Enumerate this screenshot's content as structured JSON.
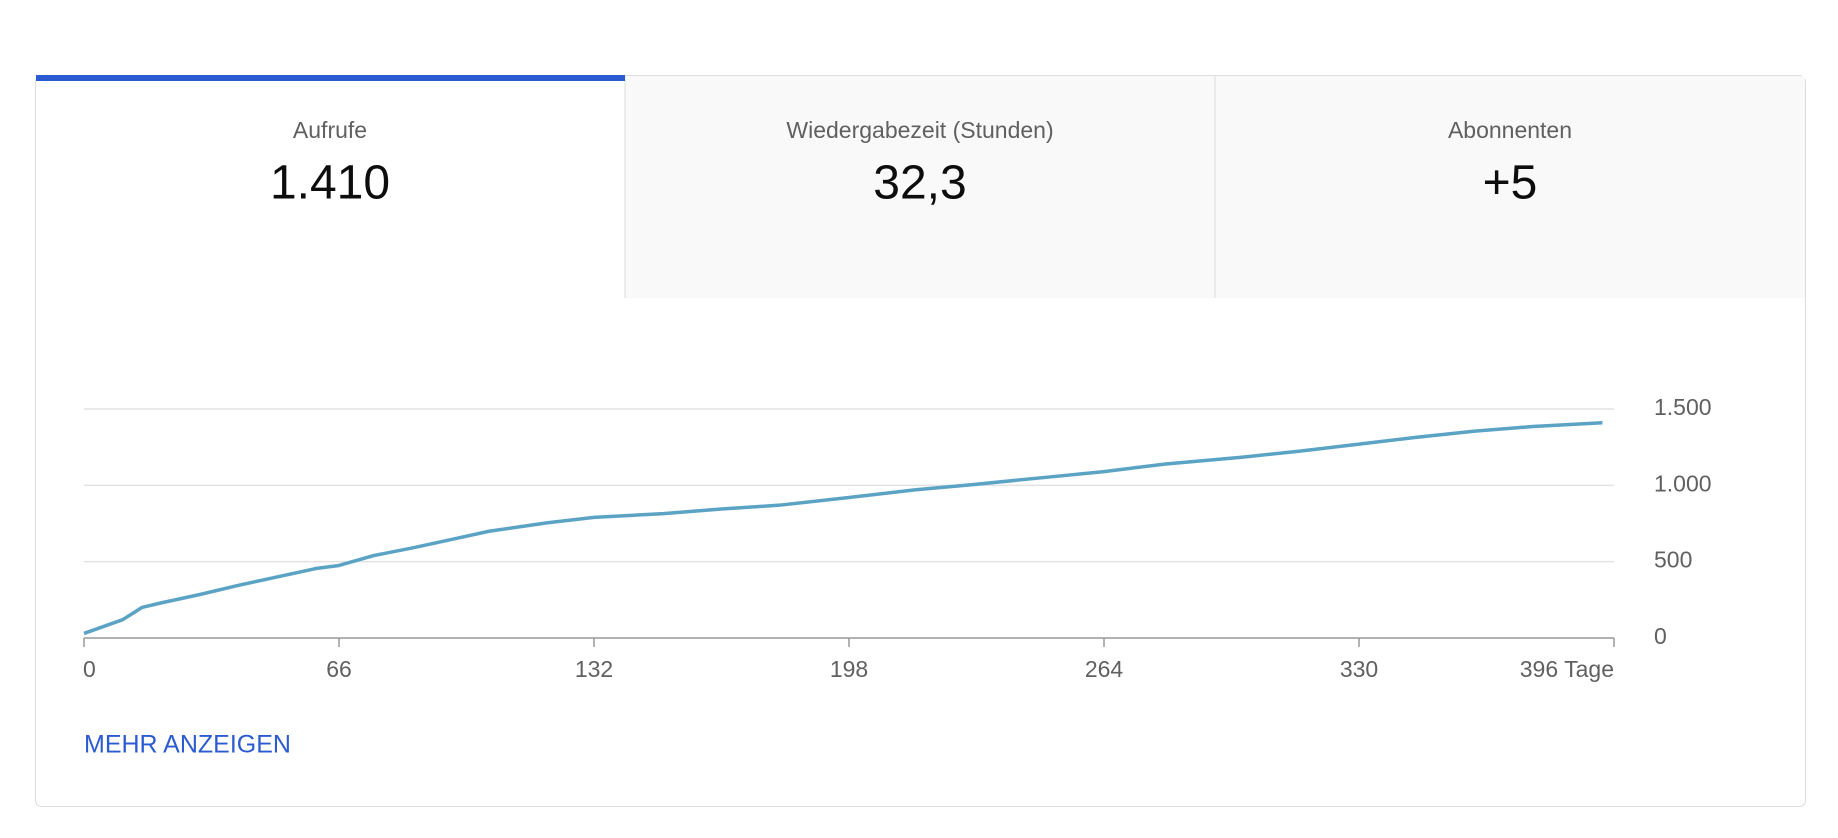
{
  "tabs": [
    {
      "label": "Aufrufe",
      "value": "1.410"
    },
    {
      "label": "Wiedergabezeit (Stunden)",
      "value": "32,3"
    },
    {
      "label": "Abonnenten",
      "value": "+5"
    }
  ],
  "chart_data": {
    "type": "line",
    "x": [
      0,
      5,
      10,
      15,
      20,
      30,
      40,
      50,
      60,
      66,
      75,
      85,
      95,
      105,
      120,
      132,
      150,
      165,
      180,
      198,
      215,
      230,
      250,
      264,
      280,
      300,
      315,
      330,
      345,
      360,
      375,
      393
    ],
    "values": [
      30,
      75,
      120,
      200,
      230,
      285,
      345,
      400,
      455,
      475,
      540,
      590,
      645,
      700,
      755,
      790,
      815,
      845,
      870,
      920,
      970,
      1005,
      1055,
      1090,
      1140,
      1185,
      1225,
      1270,
      1315,
      1355,
      1385,
      1410
    ],
    "color": "#5ba3c4",
    "xlim": [
      0,
      396
    ],
    "xticks": [
      0,
      66,
      132,
      198,
      264,
      330,
      {
        "value": 396,
        "label": "396 Tage"
      }
    ],
    "ylim": [
      0,
      1500
    ],
    "yticks": [
      0,
      500,
      {
        "value": 1000,
        "label": "1.000"
      },
      {
        "value": 1500,
        "label": "1.500"
      }
    ],
    "grid": true
  },
  "link": "MEHR ANZEIGEN"
}
